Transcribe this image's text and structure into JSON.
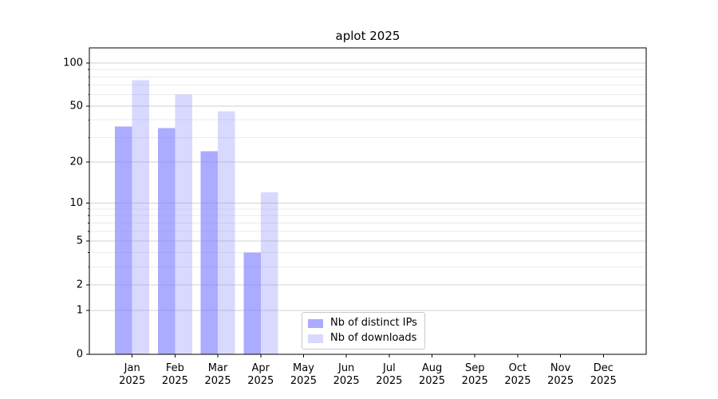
{
  "chart_data": {
    "type": "bar",
    "title": "aplot 2025",
    "categories": [
      "Jan 2025",
      "Feb 2025",
      "Mar 2025",
      "Apr 2025",
      "May 2025",
      "Jun 2025",
      "Jul 2025",
      "Aug 2025",
      "Sep 2025",
      "Oct 2025",
      "Nov 2025",
      "Dec 2025"
    ],
    "series": [
      {
        "name": "Nb of distinct IPs",
        "color": "#8080ff",
        "alpha": 0.66,
        "values": [
          36,
          35,
          24,
          4,
          0,
          0,
          0,
          0,
          0,
          0,
          0,
          0
        ]
      },
      {
        "name": "Nb of downloads",
        "color": "#8080ff",
        "alpha": 0.3,
        "values": [
          76,
          60,
          46,
          12,
          0,
          0,
          0,
          0,
          0,
          0,
          0,
          0
        ]
      }
    ],
    "xlabel": "",
    "ylabel": "",
    "yscale": "log1p",
    "ylim": [
      0,
      127
    ],
    "y_ticks": [
      0,
      1,
      2,
      5,
      10,
      20,
      50,
      100
    ],
    "y_minor_ticks": [
      3,
      4,
      6,
      7,
      8,
      9,
      30,
      40,
      60,
      70,
      80,
      90
    ],
    "grid": "horizontal",
    "legend_position": "lower center",
    "axis_color": "#000000",
    "text_color": "#000000",
    "major_grid_color": "#d2d2d2",
    "minor_grid_color": "#ebebeb"
  }
}
